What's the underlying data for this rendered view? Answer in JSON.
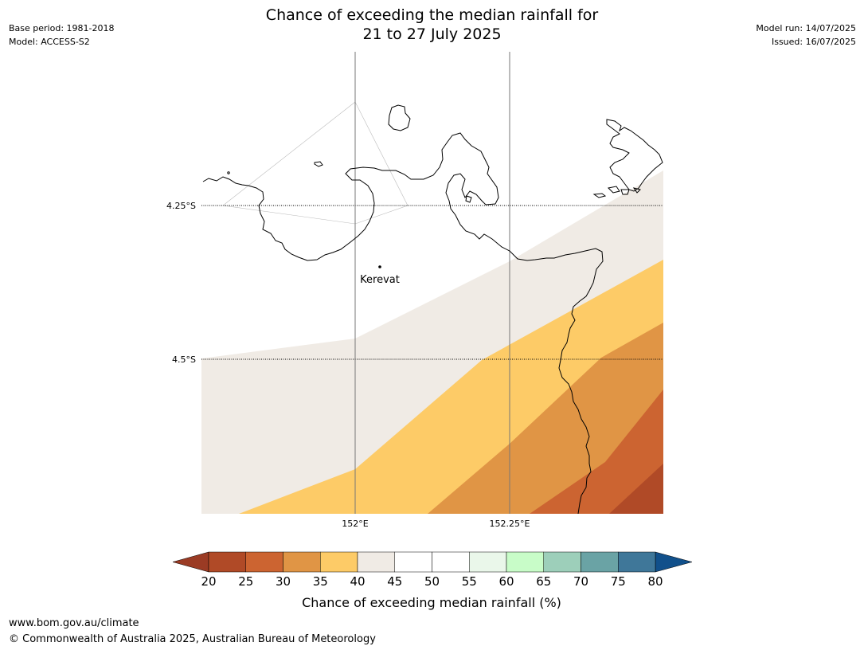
{
  "header": {
    "title_line1": "Chance of exceeding the median rainfall for",
    "title_line2": "21 to 27 July 2025",
    "base_period": "Base period: 1981-2018",
    "model": "Model: ACCESS-S2",
    "model_run": "Model run: 14/07/2025",
    "issued": "Issued: 16/07/2025"
  },
  "map": {
    "lat_labels": [
      "4.25°S",
      "4.5°S"
    ],
    "lon_labels": [
      "152°E",
      "152.25°E"
    ],
    "place": "Kerevat",
    "colors": {
      "land_outline": "#000000",
      "band_40": "#f0ebe5",
      "band_35": "#fdcb67",
      "band_30": "#e09545",
      "band_25": "#cc6431",
      "band_20": "#b04a27"
    }
  },
  "colorbar": {
    "label": "Chance of exceeding median rainfall (%)",
    "ticks": [
      "20",
      "25",
      "30",
      "35",
      "40",
      "45",
      "50",
      "55",
      "60",
      "65",
      "70",
      "75",
      "80"
    ],
    "low_extend_color": "#9b3b24",
    "high_extend_color": "#11508b",
    "segment_colors": [
      "#b04a27",
      "#cc6431",
      "#e09545",
      "#fdcb67",
      "#f0ebe5",
      "#ffffff",
      "#ffffff",
      "#eaf7ea",
      "#c8fcc8",
      "#9dcfba",
      "#6aa3a5",
      "#3f7799"
    ]
  },
  "footer": {
    "url": "www.bom.gov.au/climate",
    "copyright": "© Commonwealth of Australia 2025, Australian Bureau of Meteorology"
  }
}
